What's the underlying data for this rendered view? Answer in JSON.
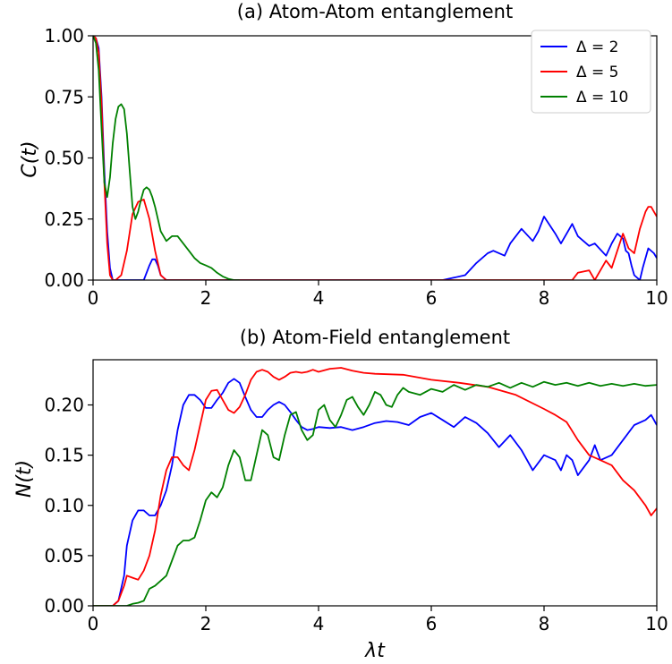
{
  "chart_data": [
    {
      "type": "line",
      "title": "(a) Atom-Atom entanglement",
      "xlabel": "",
      "ylabel": "C(t)",
      "xlim": [
        0,
        10
      ],
      "ylim": [
        0,
        1.0
      ],
      "xticks": [
        "0",
        "2",
        "4",
        "6",
        "8",
        "10"
      ],
      "yticks": [
        "0.00",
        "0.25",
        "0.50",
        "0.75",
        "1.00"
      ],
      "legend_position": "top-right",
      "series": [
        {
          "name": "Δ = 2",
          "color": "#0000ff",
          "x": [
            0,
            0.05,
            0.1,
            0.15,
            0.2,
            0.25,
            0.3,
            0.35,
            0.4,
            0.5,
            0.9,
            1.0,
            1.05,
            1.1,
            1.15,
            1.2,
            1.3,
            6.2,
            6.4,
            6.6,
            6.8,
            7.0,
            7.1,
            7.3,
            7.4,
            7.6,
            7.8,
            7.9,
            8.0,
            8.2,
            8.3,
            8.5,
            8.6,
            8.8,
            8.9,
            9.1,
            9.2,
            9.3,
            9.4,
            9.45,
            9.5,
            9.55,
            9.6,
            9.7,
            9.75,
            9.85,
            9.95,
            10.0
          ],
          "values": [
            1.0,
            0.99,
            0.95,
            0.75,
            0.45,
            0.2,
            0.05,
            0.0,
            0.0,
            0.0,
            0.0,
            0.06,
            0.085,
            0.085,
            0.06,
            0.02,
            0.0,
            0.0,
            0.01,
            0.02,
            0.07,
            0.11,
            0.12,
            0.1,
            0.15,
            0.21,
            0.16,
            0.2,
            0.26,
            0.19,
            0.15,
            0.23,
            0.18,
            0.14,
            0.15,
            0.1,
            0.15,
            0.19,
            0.17,
            0.12,
            0.11,
            0.06,
            0.02,
            0.0,
            0.05,
            0.13,
            0.11,
            0.09
          ]
        },
        {
          "name": "Δ = 5",
          "color": "#ff0000",
          "x": [
            0,
            0.05,
            0.1,
            0.15,
            0.2,
            0.25,
            0.3,
            0.35,
            0.4,
            0.5,
            0.6,
            0.7,
            0.8,
            0.9,
            1.0,
            1.1,
            1.2,
            1.3,
            8.3,
            8.5,
            8.6,
            8.8,
            8.9,
            9.0,
            9.1,
            9.2,
            9.3,
            9.4,
            9.5,
            9.6,
            9.7,
            9.8,
            9.85,
            9.9,
            9.95,
            10.0
          ],
          "values": [
            1.0,
            0.99,
            0.93,
            0.72,
            0.4,
            0.15,
            0.02,
            0.0,
            0.0,
            0.02,
            0.12,
            0.27,
            0.32,
            0.33,
            0.25,
            0.12,
            0.02,
            0.0,
            0.0,
            0.0,
            0.03,
            0.04,
            0.0,
            0.04,
            0.08,
            0.05,
            0.12,
            0.19,
            0.13,
            0.11,
            0.21,
            0.28,
            0.3,
            0.3,
            0.28,
            0.26
          ]
        },
        {
          "name": "Δ = 10",
          "color": "#008000",
          "x": [
            0,
            0.05,
            0.1,
            0.15,
            0.2,
            0.25,
            0.3,
            0.35,
            0.4,
            0.45,
            0.5,
            0.55,
            0.6,
            0.65,
            0.7,
            0.75,
            0.8,
            0.85,
            0.9,
            0.95,
            1.0,
            1.05,
            1.1,
            1.2,
            1.3,
            1.4,
            1.45,
            1.5,
            1.6,
            1.7,
            1.8,
            1.9,
            2.0,
            2.1,
            2.2,
            2.3,
            2.4,
            2.5,
            2.6
          ],
          "values": [
            1.0,
            0.97,
            0.86,
            0.62,
            0.4,
            0.34,
            0.42,
            0.56,
            0.66,
            0.71,
            0.72,
            0.7,
            0.6,
            0.45,
            0.3,
            0.25,
            0.28,
            0.33,
            0.37,
            0.38,
            0.37,
            0.34,
            0.3,
            0.2,
            0.16,
            0.18,
            0.18,
            0.18,
            0.15,
            0.12,
            0.09,
            0.07,
            0.06,
            0.05,
            0.03,
            0.015,
            0.005,
            0.0,
            0.0
          ]
        }
      ]
    },
    {
      "type": "line",
      "title": "(b) Atom-Field entanglement",
      "xlabel": "λt",
      "ylabel": "N(t)",
      "xlim": [
        0,
        10
      ],
      "ylim": [
        0,
        0.245
      ],
      "xticks": [
        "0",
        "2",
        "4",
        "6",
        "8",
        "10"
      ],
      "yticks": [
        "0.00",
        "0.05",
        "0.10",
        "0.15",
        "0.20"
      ],
      "series": [
        {
          "name": "Δ = 2",
          "color": "#0000ff",
          "x": [
            0,
            0.35,
            0.45,
            0.55,
            0.6,
            0.7,
            0.8,
            0.9,
            1.0,
            1.1,
            1.2,
            1.3,
            1.4,
            1.5,
            1.6,
            1.7,
            1.8,
            1.9,
            2.0,
            2.1,
            2.2,
            2.3,
            2.4,
            2.5,
            2.6,
            2.7,
            2.8,
            2.9,
            3.0,
            3.1,
            3.2,
            3.3,
            3.4,
            3.5,
            3.6,
            3.7,
            3.8,
            3.9,
            4.0,
            4.2,
            4.4,
            4.6,
            4.8,
            5.0,
            5.2,
            5.4,
            5.6,
            5.8,
            6.0,
            6.2,
            6.4,
            6.6,
            6.8,
            7.0,
            7.2,
            7.4,
            7.6,
            7.8,
            8.0,
            8.2,
            8.3,
            8.4,
            8.5,
            8.6,
            8.8,
            8.9,
            9.0,
            9.2,
            9.4,
            9.6,
            9.8,
            9.9,
            10.0
          ],
          "values": [
            0.0,
            0.0,
            0.005,
            0.03,
            0.06,
            0.085,
            0.095,
            0.095,
            0.09,
            0.09,
            0.1,
            0.115,
            0.14,
            0.175,
            0.2,
            0.21,
            0.21,
            0.205,
            0.197,
            0.197,
            0.205,
            0.212,
            0.222,
            0.226,
            0.222,
            0.208,
            0.195,
            0.188,
            0.188,
            0.195,
            0.2,
            0.203,
            0.2,
            0.193,
            0.185,
            0.178,
            0.175,
            0.176,
            0.178,
            0.177,
            0.178,
            0.175,
            0.178,
            0.182,
            0.184,
            0.183,
            0.18,
            0.188,
            0.192,
            0.185,
            0.178,
            0.188,
            0.182,
            0.172,
            0.158,
            0.17,
            0.155,
            0.135,
            0.15,
            0.145,
            0.135,
            0.15,
            0.145,
            0.13,
            0.145,
            0.16,
            0.145,
            0.15,
            0.165,
            0.18,
            0.185,
            0.19,
            0.18
          ]
        },
        {
          "name": "Δ = 5",
          "color": "#ff0000",
          "x": [
            0,
            0.35,
            0.45,
            0.55,
            0.6,
            0.7,
            0.8,
            0.9,
            1.0,
            1.1,
            1.2,
            1.3,
            1.4,
            1.5,
            1.6,
            1.7,
            1.8,
            1.9,
            2.0,
            2.1,
            2.2,
            2.3,
            2.4,
            2.5,
            2.6,
            2.7,
            2.8,
            2.9,
            3.0,
            3.1,
            3.2,
            3.3,
            3.4,
            3.5,
            3.6,
            3.7,
            3.8,
            3.9,
            4.0,
            4.2,
            4.4,
            4.6,
            4.8,
            5.0,
            5.5,
            6.0,
            6.5,
            7.0,
            7.5,
            8.0,
            8.2,
            8.4,
            8.6,
            8.8,
            9.0,
            9.2,
            9.4,
            9.6,
            9.8,
            9.9,
            10.0
          ],
          "values": [
            0.0,
            0.0,
            0.005,
            0.02,
            0.03,
            0.028,
            0.026,
            0.035,
            0.05,
            0.075,
            0.11,
            0.135,
            0.148,
            0.148,
            0.14,
            0.135,
            0.155,
            0.18,
            0.205,
            0.214,
            0.215,
            0.205,
            0.195,
            0.192,
            0.198,
            0.21,
            0.225,
            0.233,
            0.235,
            0.233,
            0.228,
            0.225,
            0.228,
            0.232,
            0.233,
            0.232,
            0.233,
            0.235,
            0.233,
            0.236,
            0.237,
            0.234,
            0.232,
            0.231,
            0.23,
            0.225,
            0.222,
            0.218,
            0.21,
            0.196,
            0.19,
            0.183,
            0.165,
            0.15,
            0.145,
            0.14,
            0.125,
            0.115,
            0.1,
            0.09,
            0.097
          ]
        },
        {
          "name": "Δ = 10",
          "color": "#008000",
          "x": [
            0,
            0.6,
            0.7,
            0.8,
            0.9,
            1.0,
            1.1,
            1.2,
            1.3,
            1.4,
            1.5,
            1.6,
            1.7,
            1.8,
            1.9,
            2.0,
            2.1,
            2.2,
            2.3,
            2.4,
            2.5,
            2.6,
            2.7,
            2.8,
            2.9,
            3.0,
            3.1,
            3.2,
            3.3,
            3.4,
            3.5,
            3.6,
            3.7,
            3.8,
            3.9,
            4.0,
            4.1,
            4.2,
            4.3,
            4.4,
            4.5,
            4.6,
            4.7,
            4.8,
            4.9,
            5.0,
            5.1,
            5.2,
            5.3,
            5.4,
            5.5,
            5.6,
            5.8,
            6.0,
            6.2,
            6.4,
            6.6,
            6.8,
            7.0,
            7.2,
            7.4,
            7.6,
            7.8,
            8.0,
            8.2,
            8.4,
            8.6,
            8.8,
            9.0,
            9.2,
            9.4,
            9.6,
            9.8,
            10.0
          ],
          "values": [
            0.0,
            0.0,
            0.002,
            0.003,
            0.005,
            0.017,
            0.02,
            0.025,
            0.03,
            0.045,
            0.06,
            0.065,
            0.065,
            0.068,
            0.085,
            0.105,
            0.113,
            0.108,
            0.118,
            0.14,
            0.155,
            0.148,
            0.125,
            0.125,
            0.15,
            0.175,
            0.17,
            0.148,
            0.145,
            0.17,
            0.19,
            0.193,
            0.175,
            0.165,
            0.17,
            0.195,
            0.2,
            0.185,
            0.178,
            0.19,
            0.205,
            0.208,
            0.198,
            0.19,
            0.2,
            0.213,
            0.21,
            0.2,
            0.198,
            0.21,
            0.217,
            0.213,
            0.21,
            0.216,
            0.213,
            0.22,
            0.215,
            0.22,
            0.218,
            0.222,
            0.217,
            0.222,
            0.218,
            0.223,
            0.22,
            0.222,
            0.219,
            0.222,
            0.219,
            0.221,
            0.219,
            0.221,
            0.219,
            0.22
          ]
        }
      ]
    }
  ]
}
